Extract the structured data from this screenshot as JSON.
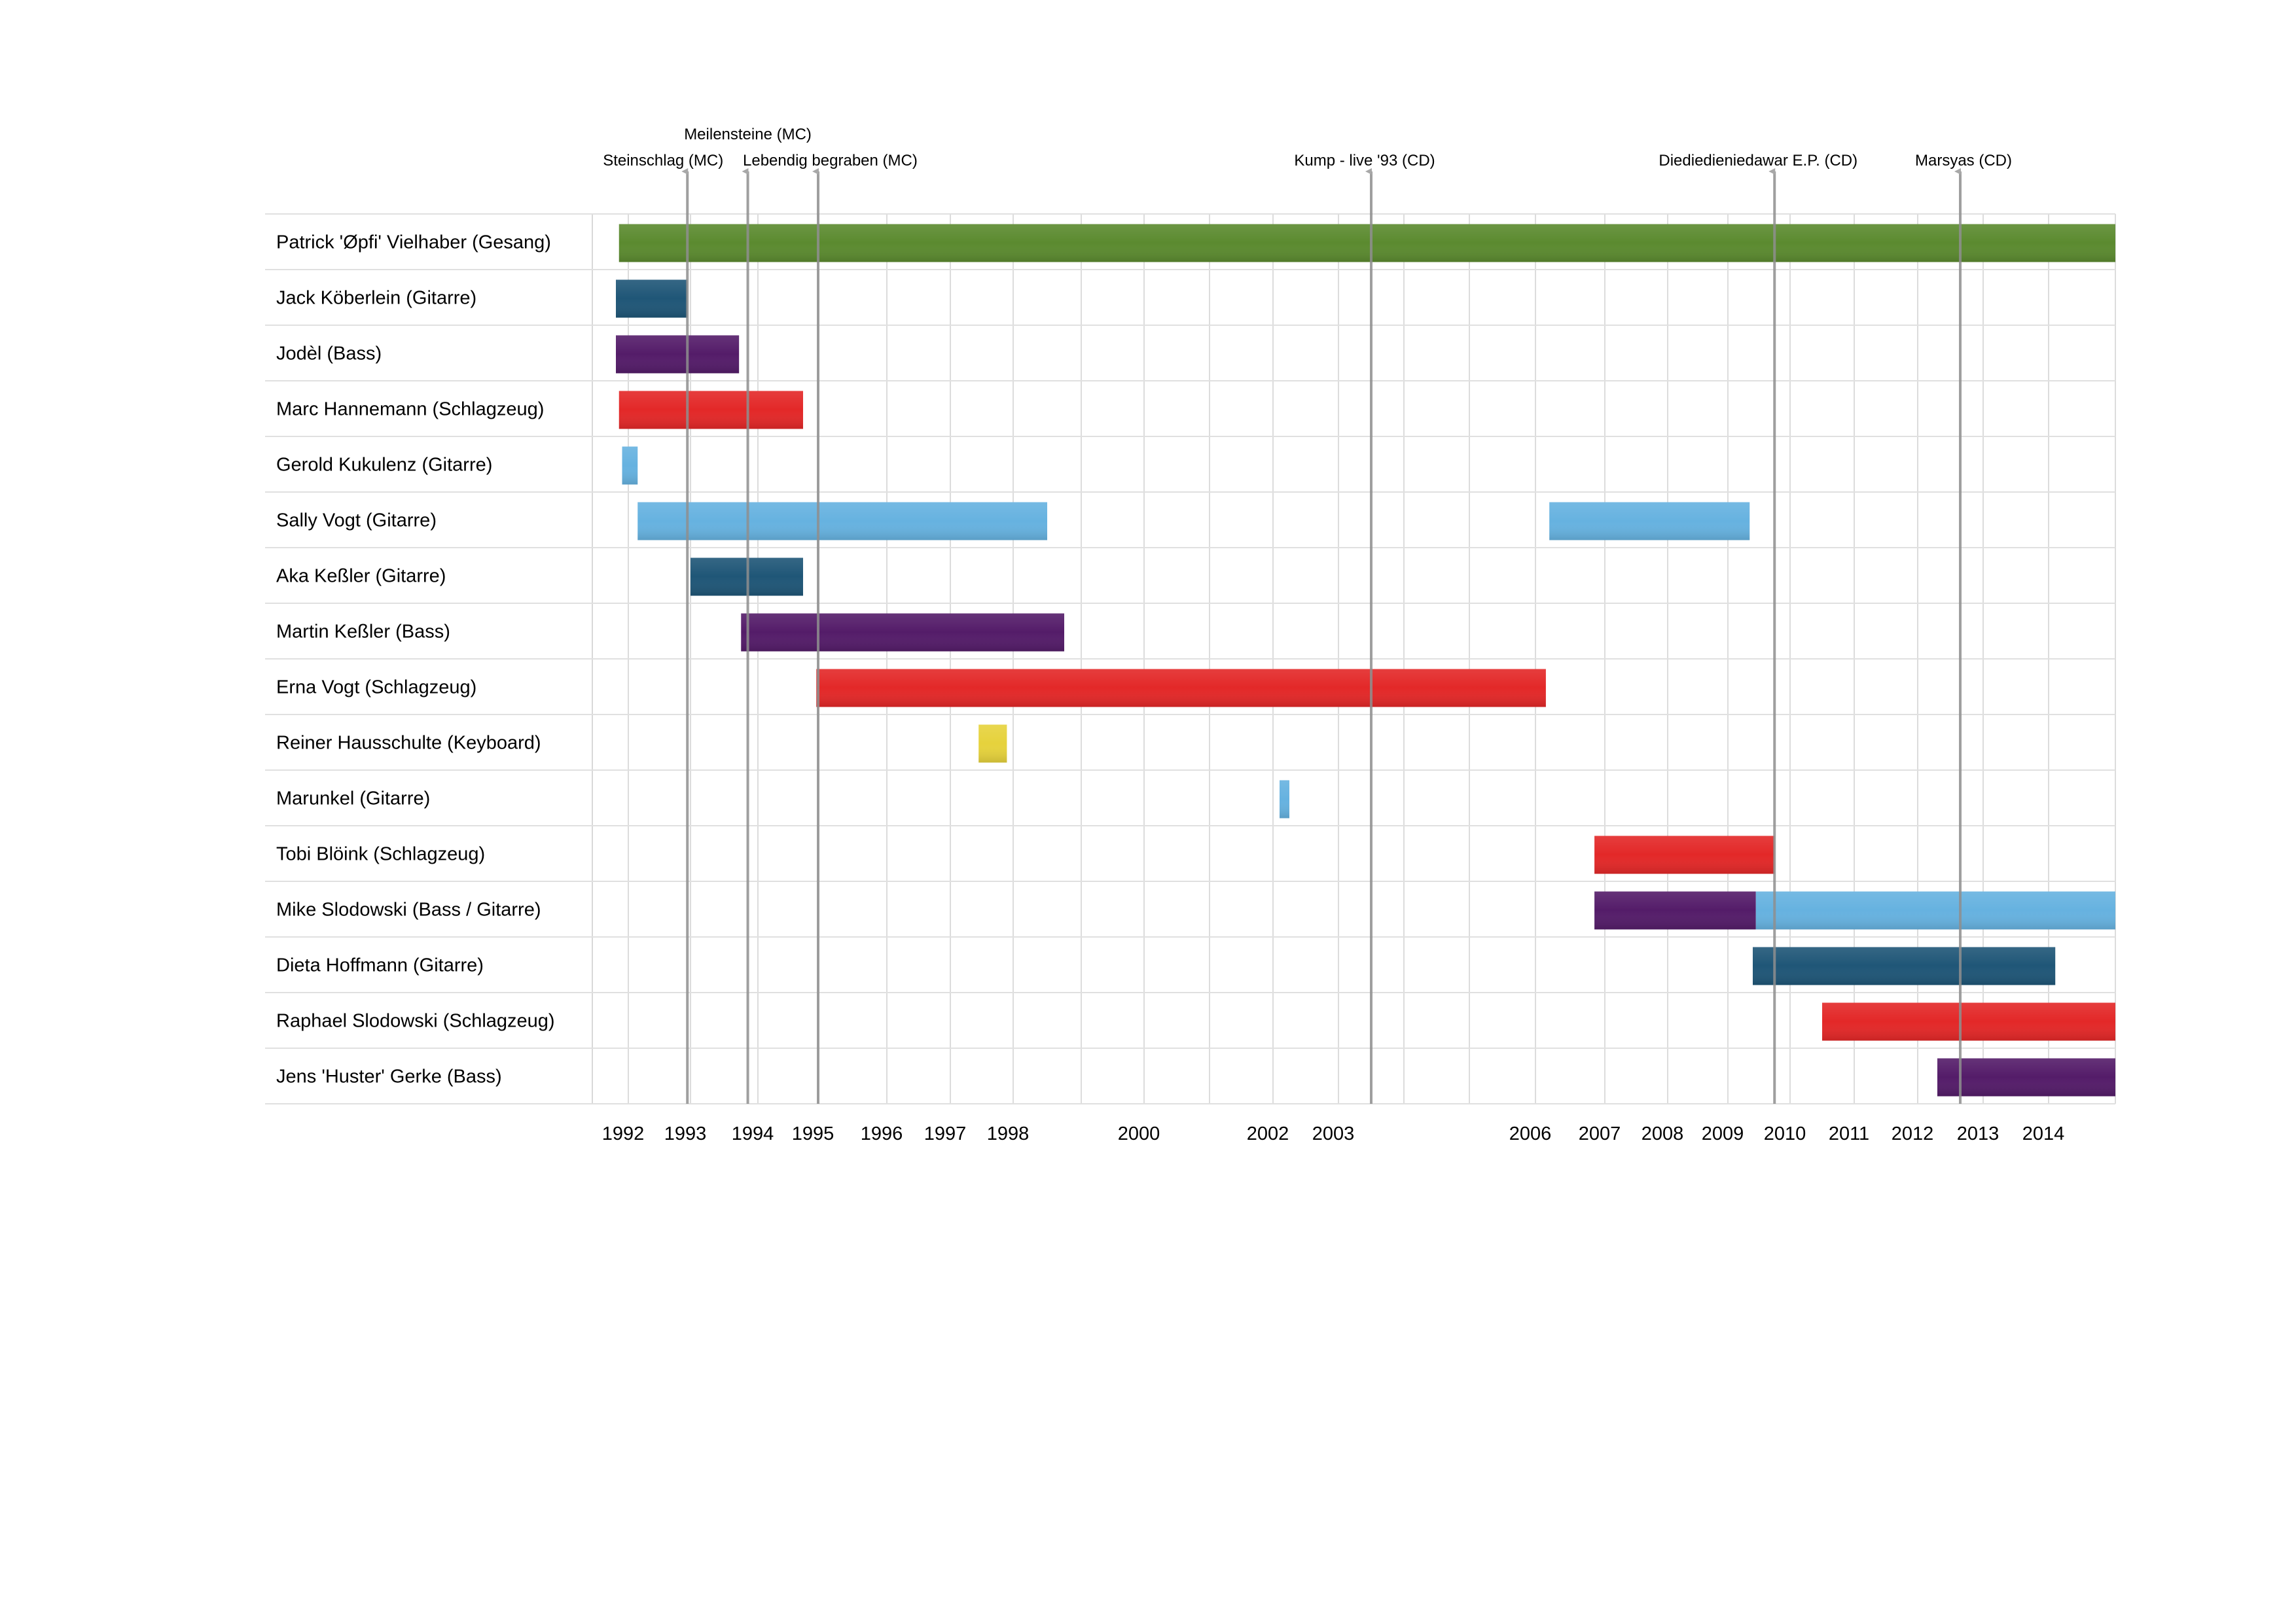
{
  "chart_data": {
    "type": "timeline",
    "title": "",
    "xlabel": "",
    "ylabel": "",
    "colors": {
      "green": "#5b8a2f",
      "navy": "#1f5677",
      "purple": "#541c69",
      "red": "#e32828",
      "lightblue": "#66b2e0",
      "yellow": "#e6d23c"
    },
    "year_ticks": [
      {
        "label": "1992",
        "value": 1992
      },
      {
        "label": "1993",
        "value": 1993
      },
      {
        "label": "1994",
        "value": 1994
      },
      {
        "label": "1995",
        "value": 1995
      },
      {
        "label": "1996",
        "value": 1996
      },
      {
        "label": "1997",
        "value": 1997
      },
      {
        "label": "1998",
        "value": 1998
      },
      {
        "label": "2000",
        "value": 2000
      },
      {
        "label": "2002",
        "value": 2002
      },
      {
        "label": "2003",
        "value": 2003
      },
      {
        "label": "2006",
        "value": 2006
      },
      {
        "label": "2007",
        "value": 2007
      },
      {
        "label": "2008",
        "value": 2008
      },
      {
        "label": "2009",
        "value": 2009
      },
      {
        "label": "2010",
        "value": 2010
      },
      {
        "label": "2011",
        "value": 2011
      },
      {
        "label": "2012",
        "value": 2012
      },
      {
        "label": "2013",
        "value": 2013
      },
      {
        "label": "2014",
        "value": 2014
      }
    ],
    "grid_years": [
      1992,
      1993,
      1994,
      1995,
      1996,
      1997,
      1998,
      1999,
      2000,
      2001,
      2002,
      2003,
      2004,
      2005,
      2006,
      2007,
      2008,
      2009,
      2010,
      2011,
      2012,
      2013,
      2014,
      2015
    ],
    "rows": [
      {
        "label": "Patrick 'Øpfi' Vielhaber (Gesang)",
        "bars": [
          {
            "start": 1991.85,
            "end": 2015.0,
            "color": "green"
          }
        ]
      },
      {
        "label": "Jack Köberlein  (Gitarre)",
        "bars": [
          {
            "start": 1991.8,
            "end": 1992.95,
            "color": "navy"
          }
        ]
      },
      {
        "label": "Jodèl  (Bass)",
        "bars": [
          {
            "start": 1991.8,
            "end": 1993.72,
            "color": "purple"
          }
        ]
      },
      {
        "label": "Marc Hannemann (Schlagzeug)",
        "bars": [
          {
            "start": 1991.85,
            "end": 1994.75,
            "color": "red"
          }
        ]
      },
      {
        "label": "Gerold Kukulenz (Gitarre)",
        "bars": [
          {
            "start": 1991.9,
            "end": 1992.15,
            "color": "lightblue"
          }
        ]
      },
      {
        "label": "Sally Vogt (Gitarre)",
        "bars": [
          {
            "start": 1992.15,
            "end": 1998.5,
            "color": "lightblue"
          },
          {
            "start": 2006.2,
            "end": 2009.35,
            "color": "lightblue"
          }
        ]
      },
      {
        "label": "Aka Keßler  (Gitarre)",
        "bars": [
          {
            "start": 1993.0,
            "end": 1994.75,
            "color": "navy"
          }
        ]
      },
      {
        "label": "Martin Keßler  (Bass)",
        "bars": [
          {
            "start": 1993.75,
            "end": 1998.75,
            "color": "purple"
          }
        ]
      },
      {
        "label": "Erna Vogt  (Schlagzeug)",
        "bars": [
          {
            "start": 1994.97,
            "end": 2006.15,
            "color": "red"
          }
        ]
      },
      {
        "label": "Reiner Hausschulte  (Keyboard)",
        "bars": [
          {
            "start": 1997.45,
            "end": 1997.9,
            "color": "yellow"
          }
        ]
      },
      {
        "label": "Marunkel  (Gitarre)",
        "bars": [
          {
            "start": 2002.1,
            "end": 2002.25,
            "color": "lightblue"
          }
        ]
      },
      {
        "label": "Tobi Blöink (Schlagzeug)",
        "bars": [
          {
            "start": 2006.85,
            "end": 2009.75,
            "color": "red"
          }
        ]
      },
      {
        "label": "Mike Slodowski  (Bass / Gitarre)",
        "bars": [
          {
            "start": 2006.85,
            "end": 2009.45,
            "color": "purple"
          },
          {
            "start": 2009.45,
            "end": 2015.0,
            "color": "lightblue"
          }
        ]
      },
      {
        "label": "Dieta Hoffmann (Gitarre)",
        "bars": [
          {
            "start": 2009.4,
            "end": 2014.1,
            "color": "navy"
          }
        ]
      },
      {
        "label": "Raphael Slodowski  (Schlagzeug)",
        "bars": [
          {
            "start": 2010.5,
            "end": 2015.0,
            "color": "red"
          }
        ]
      },
      {
        "label": "Jens 'Huster' Gerke (Bass)",
        "bars": [
          {
            "start": 2012.3,
            "end": 2015.0,
            "color": "purple"
          }
        ]
      }
    ],
    "releases": [
      {
        "label": "Steinschlag (MC)",
        "value": 1992.95,
        "label_row": 2
      },
      {
        "label": "Meilensteine (MC)",
        "value": 1993.85,
        "label_row": 1
      },
      {
        "label": "Lebendig begraben (MC)",
        "value": 1995.0,
        "label_row": 2
      },
      {
        "label": "Kump - live '93 (CD)",
        "value": 2003.5,
        "label_row": 2
      },
      {
        "label": "Diediedieniedawar E.P. (CD)",
        "value": 2009.75,
        "label_row": 2
      },
      {
        "label": "Marsyas (CD)",
        "value": 2012.65,
        "label_row": 2
      }
    ]
  }
}
